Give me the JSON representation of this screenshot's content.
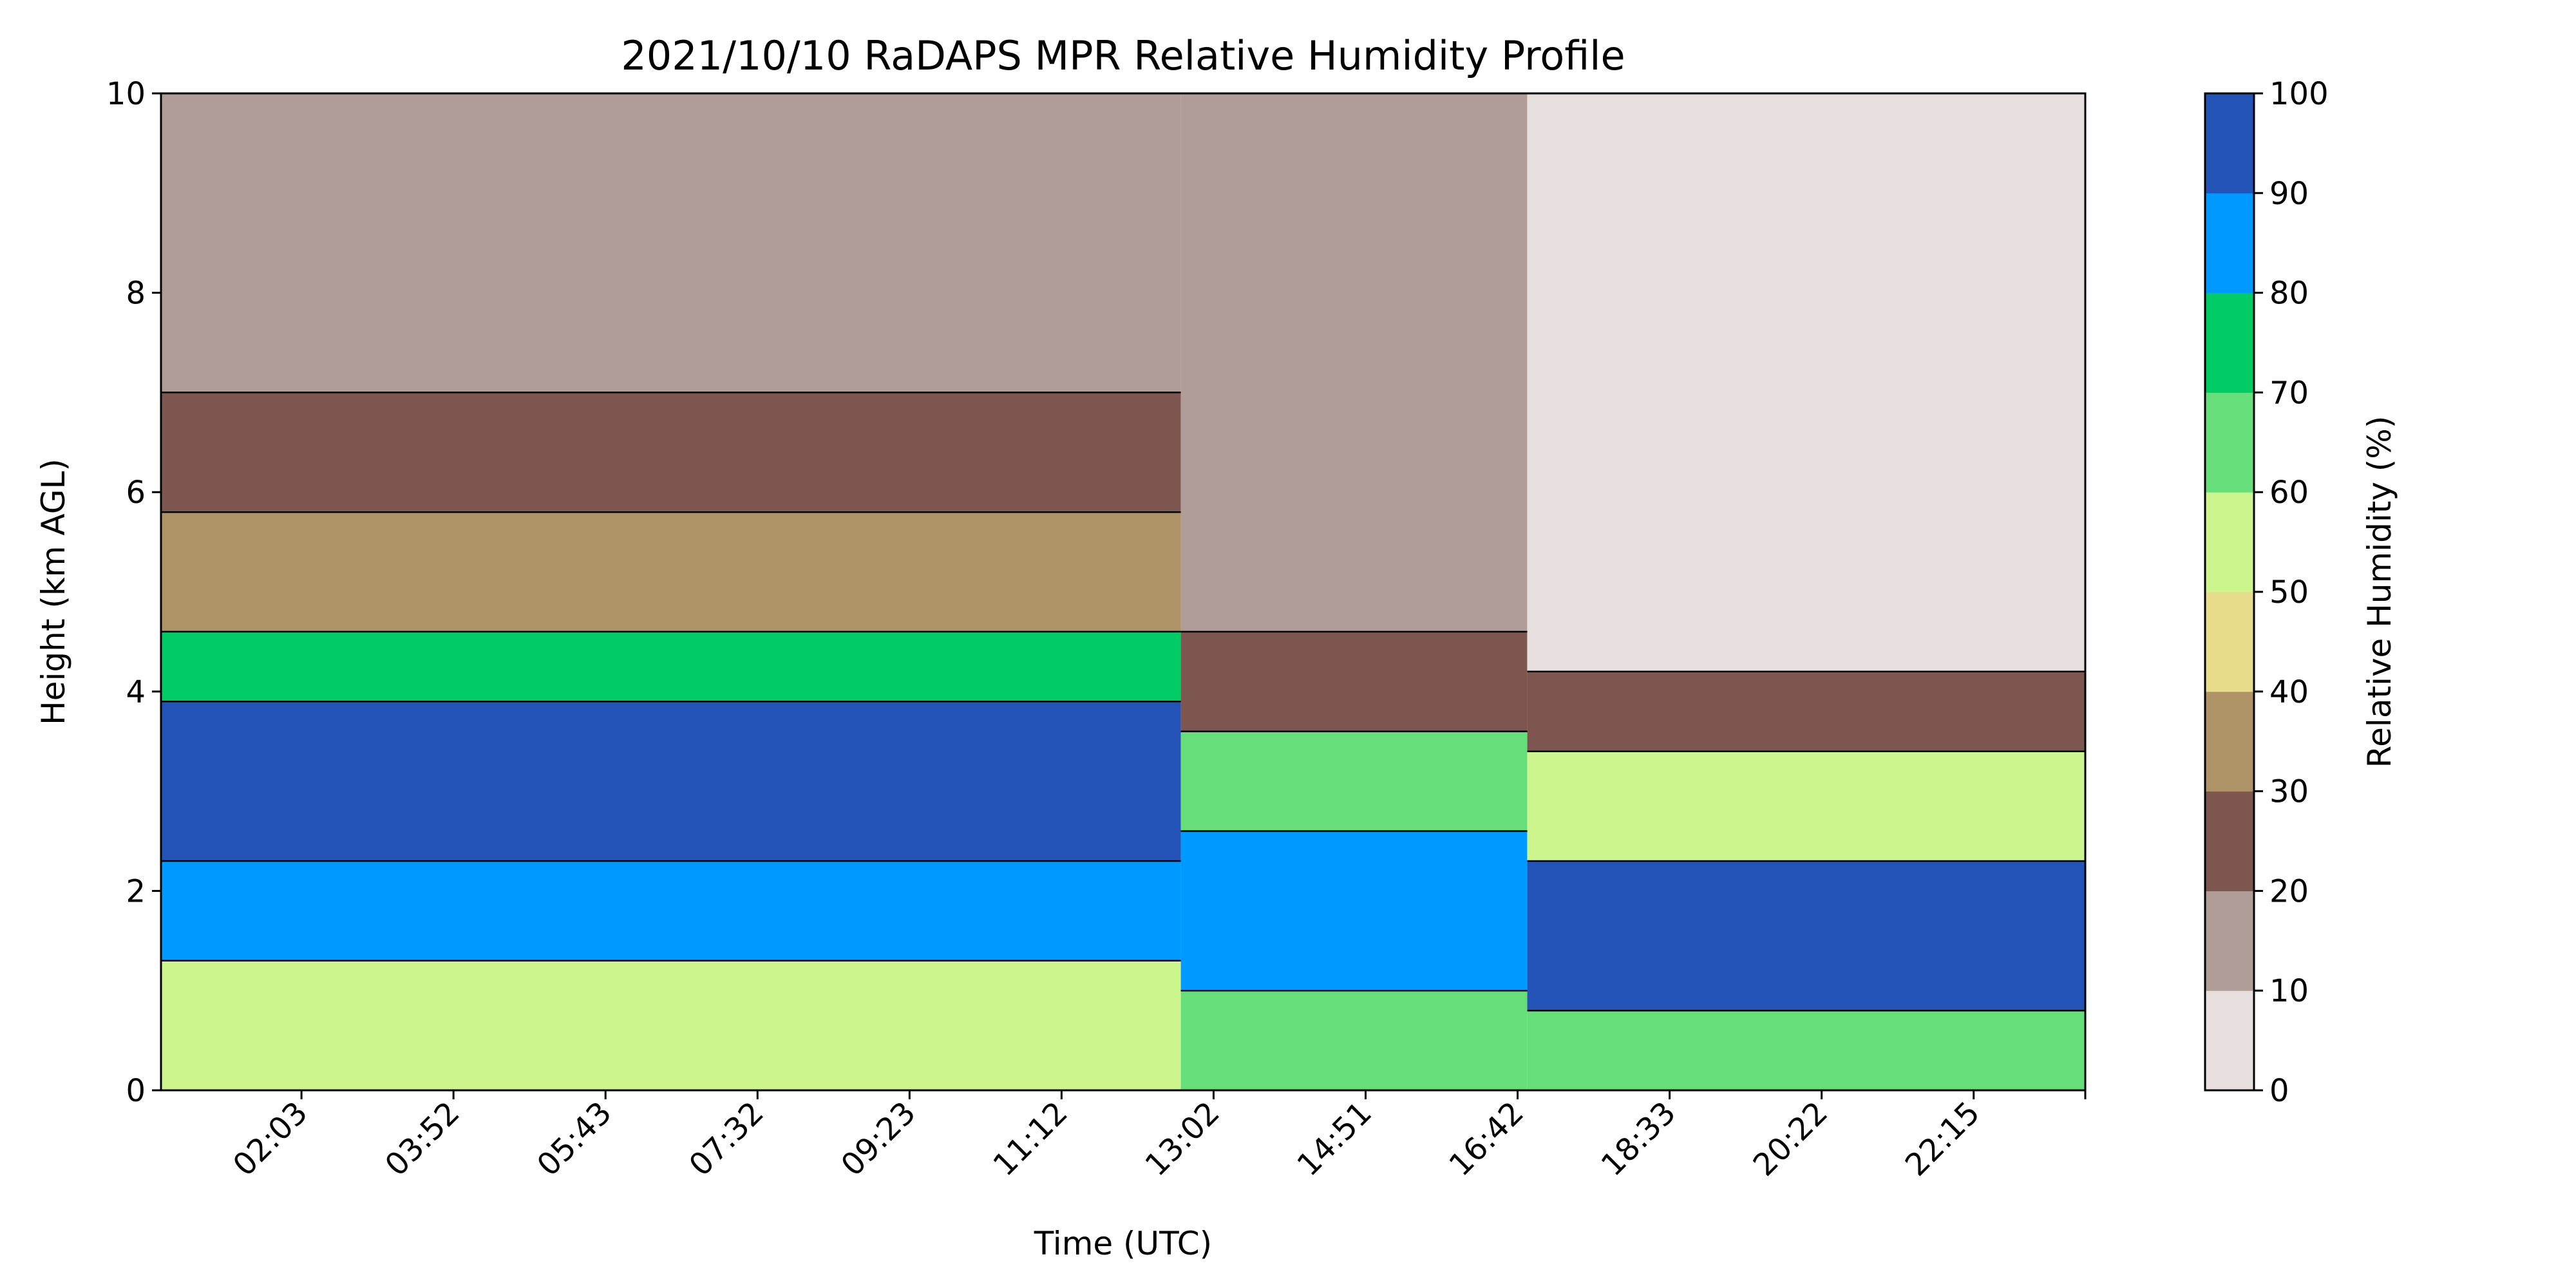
{
  "chart_data": {
    "type": "heatmap",
    "subtype": "filled-contour time-height profile",
    "title": "2021/10/10 RaDAPS MPR Relative Humidity Profile",
    "xlabel": "Time (UTC)",
    "ylabel": "Height (km AGL)",
    "x_tick_labels": [
      "02:03",
      "03:52",
      "05:43",
      "07:32",
      "09:23",
      "11:12",
      "13:02",
      "14:51",
      "16:42",
      "18:33",
      "20:22",
      "22:15"
    ],
    "x_tick_rotation_deg": 45,
    "ylim": [
      0,
      10
    ],
    "y_ticks": [
      0,
      2,
      4,
      6,
      8,
      10
    ],
    "colorbar": {
      "label": "Relative Humidity (%)",
      "levels": [
        0,
        10,
        20,
        30,
        40,
        50,
        60,
        70,
        80,
        90,
        100
      ],
      "colors": [
        "#e6dfdd",
        "#b19d98",
        "#7c564f",
        "#ad9366",
        "#e6dc8c",
        "#ccf58e",
        "#66df7a",
        "#00cc66",
        "#0099ff",
        "#2453b8"
      ]
    },
    "approx_profile": {
      "note": "Relative humidity bands (%) by height range (km) at three representative time periods",
      "early_0100_1300": [
        {
          "height_km": [
            0.0,
            1.3
          ],
          "rh_pct": 55
        },
        {
          "height_km": [
            1.3,
            2.3
          ],
          "rh_pct": 85
        },
        {
          "height_km": [
            2.3,
            3.9
          ],
          "rh_pct": 95
        },
        {
          "height_km": [
            3.9,
            4.6
          ],
          "rh_pct": 70
        },
        {
          "height_km": [
            4.6,
            5.8
          ],
          "rh_pct": 35
        },
        {
          "height_km": [
            5.8,
            7.0
          ],
          "rh_pct": 25
        },
        {
          "height_km": [
            7.0,
            10.0
          ],
          "rh_pct": 15
        }
      ],
      "midday_1300_1700": [
        {
          "height_km": [
            0.0,
            1.0
          ],
          "rh_pct": 65
        },
        {
          "height_km": [
            1.0,
            2.6
          ],
          "rh_pct": 85
        },
        {
          "height_km": [
            2.6,
            3.6
          ],
          "rh_pct": 60
        },
        {
          "height_km": [
            3.6,
            4.6
          ],
          "rh_pct": 25
        },
        {
          "height_km": [
            4.6,
            10.0
          ],
          "rh_pct": 10
        }
      ],
      "evening_1800_2330": [
        {
          "height_km": [
            0.0,
            0.8
          ],
          "rh_pct": 65
        },
        {
          "height_km": [
            0.8,
            2.3
          ],
          "rh_pct": 95
        },
        {
          "height_km": [
            2.3,
            3.4
          ],
          "rh_pct": 55
        },
        {
          "height_km": [
            3.4,
            4.2
          ],
          "rh_pct": 25
        },
        {
          "height_km": [
            4.2,
            10.0
          ],
          "rh_pct": 5
        }
      ]
    }
  }
}
